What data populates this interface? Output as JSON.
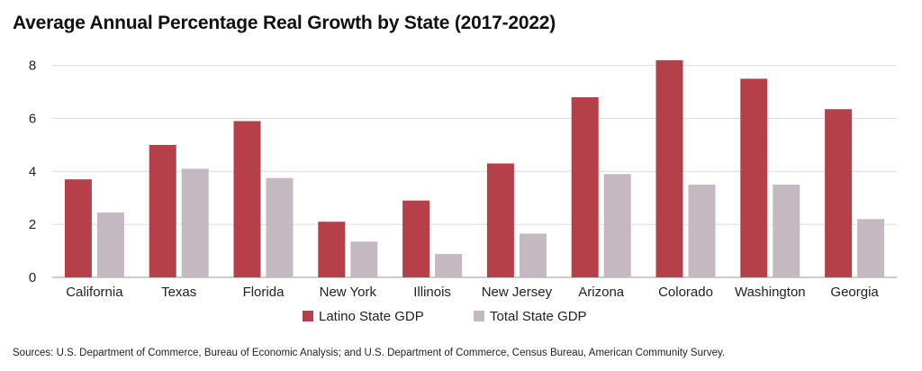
{
  "title": "Average Annual Percentage Real Growth by State (2017-2022)",
  "source": "Sources: U.S. Department of Commerce, Bureau of Economic Analysis; and U.S. Department of Commerce, Census Bureau, American Community Survey.",
  "colors": {
    "latino": "#b5404a",
    "total": "#c4b9c0",
    "grid": "#dcdcdc",
    "axis": "#999999"
  },
  "chart_data": {
    "type": "bar",
    "title": "Average Annual Percentage Real Growth by State (2017-2022)",
    "categories": [
      "California",
      "Texas",
      "Florida",
      "New York",
      "Illinois",
      "New Jersey",
      "Arizona",
      "Colorado",
      "Washington",
      "Georgia"
    ],
    "series": [
      {
        "name": "Latino State GDP",
        "values": [
          3.7,
          5.0,
          5.9,
          2.1,
          2.9,
          4.3,
          6.8,
          8.2,
          7.5,
          6.35
        ]
      },
      {
        "name": "Total State GDP",
        "values": [
          2.45,
          4.1,
          3.75,
          1.35,
          0.88,
          1.65,
          3.9,
          3.5,
          3.5,
          2.2
        ]
      }
    ],
    "ylim": [
      0,
      8.5
    ],
    "yticks": [
      0,
      2,
      4,
      6,
      8
    ],
    "grid": true,
    "legend": "bottom-center"
  }
}
